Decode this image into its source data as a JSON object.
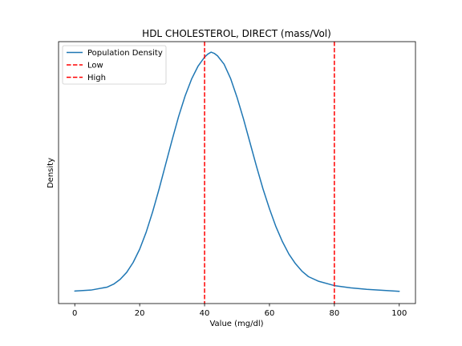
{
  "chart_data": {
    "type": "line",
    "title": "HDL CHOLESTEROL, DIRECT (mass/Vol)",
    "xlabel": "Value (mg/dl)",
    "ylabel": "Density",
    "xlim": [
      -5,
      105
    ],
    "ylim": [
      0,
      1.05
    ],
    "x_ticks": [
      0,
      20,
      40,
      60,
      80,
      100
    ],
    "y_ticks_shown": false,
    "grid": false,
    "legend_position": "top-left",
    "series": [
      {
        "name": "Population Density",
        "color": "#1f77b4",
        "style": "solid",
        "x": [
          0,
          5,
          10,
          12,
          14,
          16,
          18,
          20,
          22,
          24,
          26,
          28,
          30,
          32,
          34,
          36,
          38,
          40,
          41,
          42,
          43,
          44,
          46,
          48,
          50,
          52,
          54,
          56,
          58,
          60,
          62,
          64,
          66,
          68,
          70,
          72,
          75,
          80,
          85,
          90,
          95,
          100
        ],
        "y": [
          0.05,
          0.054,
          0.066,
          0.078,
          0.097,
          0.125,
          0.165,
          0.218,
          0.286,
          0.368,
          0.46,
          0.558,
          0.656,
          0.75,
          0.832,
          0.9,
          0.952,
          0.988,
          1.0,
          1.008,
          1.003,
          0.993,
          0.96,
          0.903,
          0.827,
          0.74,
          0.645,
          0.55,
          0.46,
          0.38,
          0.308,
          0.248,
          0.198,
          0.16,
          0.13,
          0.108,
          0.09,
          0.072,
          0.063,
          0.057,
          0.053,
          0.049
        ]
      },
      {
        "name": "Low",
        "color": "#ff0000",
        "style": "dashed",
        "vline_x": 40
      },
      {
        "name": "High",
        "color": "#ff0000",
        "style": "dashed",
        "vline_x": 80
      }
    ]
  }
}
